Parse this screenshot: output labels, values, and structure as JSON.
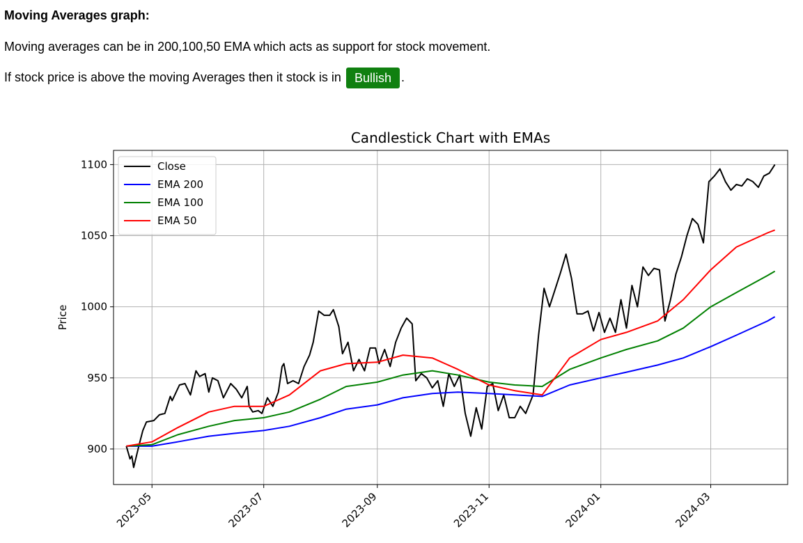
{
  "page": {
    "heading": "Moving Averages graph:",
    "para1": "Moving averages can be in 200,100,50 EMA which acts as support for stock movement.",
    "para2_prefix": "If stock price is above the moving Averages then it stock is in",
    "badge_label": "Bullish",
    "badge_color": "#108010",
    "para2_suffix": "."
  },
  "chart_data": {
    "type": "line",
    "title": "Candlestick Chart with EMAs",
    "xlabel": "",
    "ylabel": "Price",
    "xlim": [
      "2023-04-10",
      "2024-04-12"
    ],
    "ylim": [
      875,
      1110
    ],
    "xticks": [
      "2023-05",
      "2023-07",
      "2023-09",
      "2023-11",
      "2024-01",
      "2024-03"
    ],
    "xtick_dates": [
      "2023-05-01",
      "2023-07-01",
      "2023-09-01",
      "2023-11-01",
      "2024-01-01",
      "2024-03-01"
    ],
    "yticks": [
      900,
      950,
      1000,
      1050,
      1100
    ],
    "grid": true,
    "legend": "top-left",
    "series": [
      {
        "name": "Close",
        "color": "#000000",
        "points": [
          [
            "2023-04-17",
            902
          ],
          [
            "2023-04-19",
            893
          ],
          [
            "2023-04-20",
            895
          ],
          [
            "2023-04-21",
            887
          ],
          [
            "2023-04-24",
            903
          ],
          [
            "2023-04-26",
            913
          ],
          [
            "2023-04-28",
            919
          ],
          [
            "2023-05-02",
            920
          ],
          [
            "2023-05-05",
            924
          ],
          [
            "2023-05-08",
            925
          ],
          [
            "2023-05-11",
            937
          ],
          [
            "2023-05-12",
            934
          ],
          [
            "2023-05-16",
            945
          ],
          [
            "2023-05-19",
            946
          ],
          [
            "2023-05-22",
            938
          ],
          [
            "2023-05-25",
            955
          ],
          [
            "2023-05-27",
            951
          ],
          [
            "2023-05-30",
            953
          ],
          [
            "2023-06-01",
            940
          ],
          [
            "2023-06-03",
            950
          ],
          [
            "2023-06-06",
            948
          ],
          [
            "2023-06-09",
            936
          ],
          [
            "2023-06-13",
            946
          ],
          [
            "2023-06-16",
            942
          ],
          [
            "2023-06-19",
            936
          ],
          [
            "2023-06-22",
            944
          ],
          [
            "2023-06-23",
            930
          ],
          [
            "2023-06-25",
            926
          ],
          [
            "2023-06-28",
            927
          ],
          [
            "2023-06-30",
            925
          ],
          [
            "2023-07-03",
            936
          ],
          [
            "2023-07-06",
            930
          ],
          [
            "2023-07-09",
            940
          ],
          [
            "2023-07-11",
            958
          ],
          [
            "2023-07-12",
            960
          ],
          [
            "2023-07-14",
            946
          ],
          [
            "2023-07-17",
            948
          ],
          [
            "2023-07-20",
            946
          ],
          [
            "2023-07-23",
            958
          ],
          [
            "2023-07-26",
            966
          ],
          [
            "2023-07-28",
            975
          ],
          [
            "2023-07-31",
            997
          ],
          [
            "2023-08-03",
            994
          ],
          [
            "2023-08-06",
            994
          ],
          [
            "2023-08-08",
            998
          ],
          [
            "2023-08-11",
            986
          ],
          [
            "2023-08-13",
            967
          ],
          [
            "2023-08-16",
            975
          ],
          [
            "2023-08-19",
            955
          ],
          [
            "2023-08-22",
            963
          ],
          [
            "2023-08-25",
            955
          ],
          [
            "2023-08-28",
            971
          ],
          [
            "2023-08-31",
            971
          ],
          [
            "2023-09-02",
            960
          ],
          [
            "2023-09-05",
            970
          ],
          [
            "2023-09-08",
            958
          ],
          [
            "2023-09-11",
            975
          ],
          [
            "2023-09-14",
            985
          ],
          [
            "2023-09-17",
            992
          ],
          [
            "2023-09-20",
            988
          ],
          [
            "2023-09-22",
            948
          ],
          [
            "2023-09-25",
            953
          ],
          [
            "2023-09-28",
            950
          ],
          [
            "2023-10-01",
            943
          ],
          [
            "2023-10-04",
            948
          ],
          [
            "2023-10-07",
            930
          ],
          [
            "2023-10-10",
            953
          ],
          [
            "2023-10-13",
            944
          ],
          [
            "2023-10-16",
            952
          ],
          [
            "2023-10-19",
            925
          ],
          [
            "2023-10-22",
            909
          ],
          [
            "2023-10-25",
            929
          ],
          [
            "2023-10-28",
            914
          ],
          [
            "2023-10-31",
            944
          ],
          [
            "2023-11-03",
            946
          ],
          [
            "2023-11-06",
            927
          ],
          [
            "2023-11-09",
            938
          ],
          [
            "2023-11-12",
            922
          ],
          [
            "2023-11-15",
            922
          ],
          [
            "2023-11-18",
            930
          ],
          [
            "2023-11-21",
            925
          ],
          [
            "2023-11-25",
            938
          ],
          [
            "2023-11-28",
            980
          ],
          [
            "2023-12-01",
            1013
          ],
          [
            "2023-12-04",
            1000
          ],
          [
            "2023-12-07",
            1012
          ],
          [
            "2023-12-10",
            1024
          ],
          [
            "2023-12-13",
            1037
          ],
          [
            "2023-12-16",
            1020
          ],
          [
            "2023-12-19",
            995
          ],
          [
            "2023-12-22",
            995
          ],
          [
            "2023-12-25",
            997
          ],
          [
            "2023-12-28",
            983
          ],
          [
            "2023-12-31",
            996
          ],
          [
            "2024-01-03",
            982
          ],
          [
            "2024-01-06",
            992
          ],
          [
            "2024-01-09",
            982
          ],
          [
            "2024-01-12",
            1005
          ],
          [
            "2024-01-15",
            985
          ],
          [
            "2024-01-18",
            1015
          ],
          [
            "2024-01-21",
            1000
          ],
          [
            "2024-01-24",
            1028
          ],
          [
            "2024-01-27",
            1022
          ],
          [
            "2024-01-30",
            1027
          ],
          [
            "2024-02-02",
            1026
          ],
          [
            "2024-02-05",
            990
          ],
          [
            "2024-02-08",
            1005
          ],
          [
            "2024-02-11",
            1023
          ],
          [
            "2024-02-14",
            1035
          ],
          [
            "2024-02-17",
            1050
          ],
          [
            "2024-02-20",
            1062
          ],
          [
            "2024-02-23",
            1058
          ],
          [
            "2024-02-26",
            1045
          ],
          [
            "2024-02-29",
            1088
          ],
          [
            "2024-03-03",
            1092
          ],
          [
            "2024-03-06",
            1097
          ],
          [
            "2024-03-09",
            1088
          ],
          [
            "2024-03-12",
            1082
          ],
          [
            "2024-03-15",
            1086
          ],
          [
            "2024-03-18",
            1085
          ],
          [
            "2024-03-21",
            1090
          ],
          [
            "2024-03-24",
            1088
          ],
          [
            "2024-03-27",
            1084
          ],
          [
            "2024-03-30",
            1092
          ],
          [
            "2024-04-02",
            1094
          ],
          [
            "2024-04-05",
            1100
          ]
        ]
      },
      {
        "name": "EMA 200",
        "color": "#0000ff",
        "points": [
          [
            "2023-04-17",
            902
          ],
          [
            "2023-05-01",
            902
          ],
          [
            "2023-05-15",
            905
          ],
          [
            "2023-06-01",
            909
          ],
          [
            "2023-06-15",
            911
          ],
          [
            "2023-07-01",
            913
          ],
          [
            "2023-07-15",
            916
          ],
          [
            "2023-08-01",
            922
          ],
          [
            "2023-08-15",
            928
          ],
          [
            "2023-09-01",
            931
          ],
          [
            "2023-09-15",
            936
          ],
          [
            "2023-10-01",
            939
          ],
          [
            "2023-10-15",
            940
          ],
          [
            "2023-11-01",
            939
          ],
          [
            "2023-11-15",
            938
          ],
          [
            "2023-11-30",
            937
          ],
          [
            "2023-12-15",
            945
          ],
          [
            "2024-01-01",
            950
          ],
          [
            "2024-01-15",
            954
          ],
          [
            "2024-02-01",
            959
          ],
          [
            "2024-02-15",
            964
          ],
          [
            "2024-03-01",
            972
          ],
          [
            "2024-03-15",
            980
          ],
          [
            "2024-04-01",
            990
          ],
          [
            "2024-04-05",
            993
          ]
        ]
      },
      {
        "name": "EMA 100",
        "color": "#008000",
        "points": [
          [
            "2023-04-17",
            902
          ],
          [
            "2023-05-01",
            903
          ],
          [
            "2023-05-15",
            910
          ],
          [
            "2023-06-01",
            916
          ],
          [
            "2023-06-15",
            920
          ],
          [
            "2023-07-01",
            922
          ],
          [
            "2023-07-15",
            926
          ],
          [
            "2023-08-01",
            935
          ],
          [
            "2023-08-15",
            944
          ],
          [
            "2023-09-01",
            947
          ],
          [
            "2023-09-15",
            952
          ],
          [
            "2023-10-01",
            955
          ],
          [
            "2023-10-15",
            952
          ],
          [
            "2023-11-01",
            947
          ],
          [
            "2023-11-15",
            945
          ],
          [
            "2023-11-30",
            944
          ],
          [
            "2023-12-15",
            956
          ],
          [
            "2024-01-01",
            964
          ],
          [
            "2024-01-15",
            970
          ],
          [
            "2024-02-01",
            976
          ],
          [
            "2024-02-15",
            985
          ],
          [
            "2024-03-01",
            1000
          ],
          [
            "2024-03-15",
            1010
          ],
          [
            "2024-04-01",
            1022
          ],
          [
            "2024-04-05",
            1025
          ]
        ]
      },
      {
        "name": "EMA 50",
        "color": "#ff0000",
        "points": [
          [
            "2023-04-17",
            902
          ],
          [
            "2023-05-01",
            905
          ],
          [
            "2023-05-15",
            915
          ],
          [
            "2023-06-01",
            926
          ],
          [
            "2023-06-15",
            930
          ],
          [
            "2023-07-01",
            930
          ],
          [
            "2023-07-15",
            938
          ],
          [
            "2023-08-01",
            955
          ],
          [
            "2023-08-15",
            960
          ],
          [
            "2023-09-01",
            961
          ],
          [
            "2023-09-15",
            966
          ],
          [
            "2023-10-01",
            964
          ],
          [
            "2023-10-15",
            956
          ],
          [
            "2023-11-01",
            945
          ],
          [
            "2023-11-15",
            941
          ],
          [
            "2023-11-30",
            938
          ],
          [
            "2023-12-15",
            964
          ],
          [
            "2024-01-01",
            977
          ],
          [
            "2024-01-15",
            982
          ],
          [
            "2024-02-01",
            990
          ],
          [
            "2024-02-15",
            1005
          ],
          [
            "2024-03-01",
            1026
          ],
          [
            "2024-03-15",
            1042
          ],
          [
            "2024-04-01",
            1052
          ],
          [
            "2024-04-05",
            1054
          ]
        ]
      }
    ]
  }
}
